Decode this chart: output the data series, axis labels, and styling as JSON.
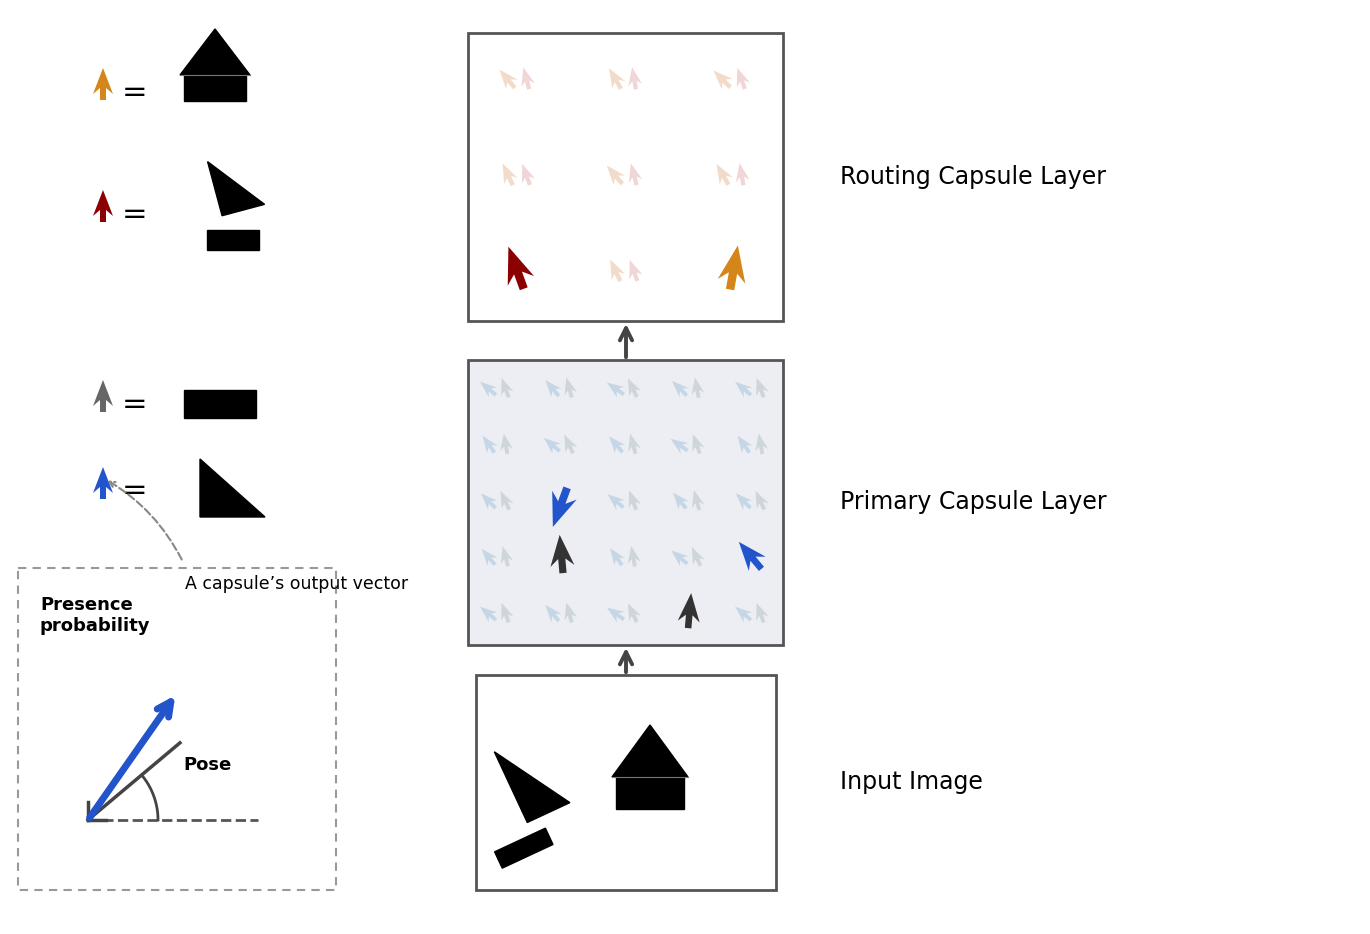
{
  "fig_width": 13.7,
  "fig_height": 9.34,
  "bg_color": "#ffffff",
  "routing_layer_label": "Routing Capsule Layer",
  "primary_layer_label": "Primary Capsule Layer",
  "input_layer_label": "Input Image",
  "orange_color": "#D4861A",
  "dark_red_color": "#8B0000",
  "blue_color": "#2255CC",
  "dark_gray_color": "#333333",
  "light_peach1": "#F0D0B8",
  "light_peach2": "#E8C0C0",
  "light_blue1": "#B8CCE0",
  "light_gray1": "#C0C8D0",
  "label_fontsize": 17
}
